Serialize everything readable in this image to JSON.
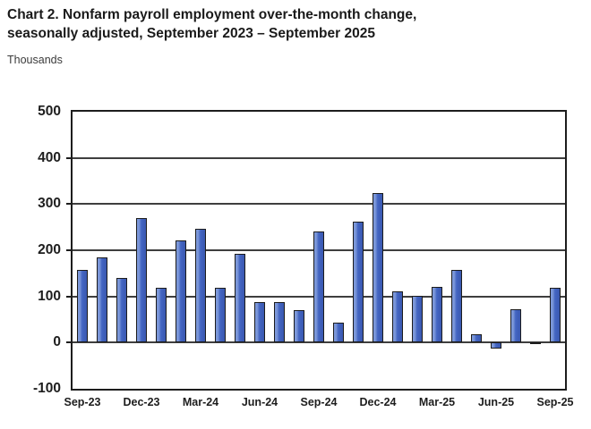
{
  "header": {
    "title_line1": "Chart 2. Nonfarm payroll employment over-the-month change,",
    "title_line2": "seasonally adjusted, September 2023 – September 2025",
    "units_label": "Thousands"
  },
  "chart_data": {
    "type": "bar",
    "title": "Chart 2. Nonfarm payroll employment over-the-month change, seasonally adjusted, September 2023 – September 2025",
    "xlabel": "",
    "ylabel": "Thousands",
    "ylim": [
      -100,
      500
    ],
    "y_ticks": [
      500,
      400,
      300,
      200,
      100,
      0,
      -100
    ],
    "grid": true,
    "legend": "none",
    "bar_fill_color": "#4365c2",
    "bar_highlight_color": "#7b97d9",
    "bar_border_color": "#1c1c1c",
    "gridline_color": "#3e3e3e",
    "frame_color": "#1d1d1d",
    "categories": [
      "Sep-23",
      "Oct-23",
      "Nov-23",
      "Dec-23",
      "Jan-24",
      "Feb-24",
      "Mar-24",
      "Apr-24",
      "May-24",
      "Jun-24",
      "Jul-24",
      "Aug-24",
      "Sep-24",
      "Oct-24",
      "Nov-24",
      "Dec-24",
      "Jan-25",
      "Feb-25",
      "Mar-25",
      "Apr-25",
      "May-25",
      "Jun-25",
      "Jul-25",
      "Aug-25",
      "Sep-25"
    ],
    "values": [
      157,
      184,
      140,
      269,
      119,
      222,
      246,
      118,
      193,
      87,
      88,
      71,
      240,
      44,
      261,
      323,
      111,
      102,
      120,
      158,
      19,
      -13,
      72,
      -4,
      119
    ],
    "x_tick_labels": [
      "Sep-23",
      "Dec-23",
      "Mar-24",
      "Jun-24",
      "Sep-24",
      "Dec-24",
      "Mar-25",
      "Jun-25",
      "Sep-25"
    ],
    "x_tick_every": 3
  }
}
